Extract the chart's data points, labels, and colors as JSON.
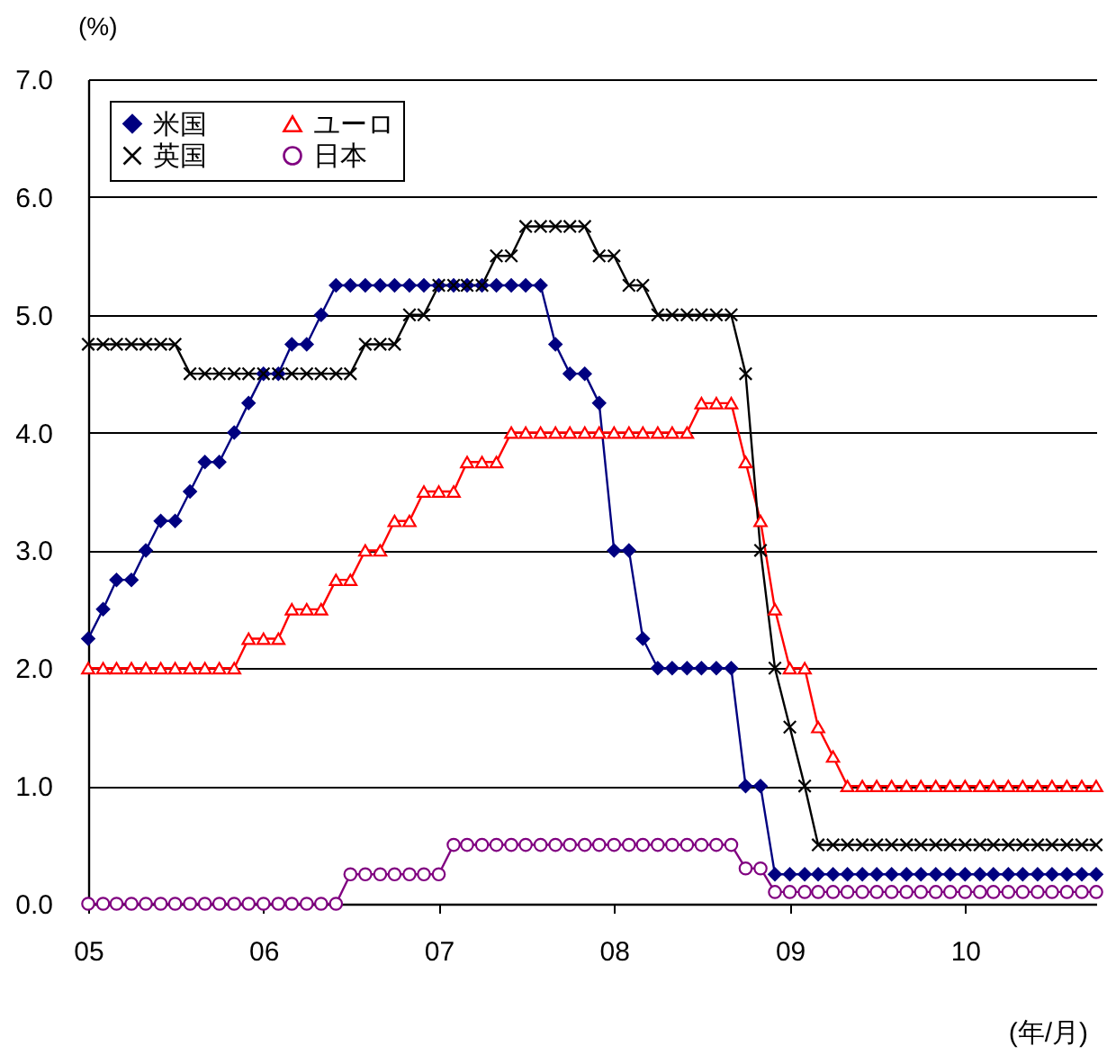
{
  "chart_data": {
    "type": "line",
    "ylabel": "(%)",
    "xlabel": "(年/月)",
    "grid": "y",
    "legend": "top left",
    "xlim": [
      "2005-01",
      "2010-10"
    ],
    "xticks": [
      {
        "value": "2005-01",
        "label": "05"
      },
      {
        "value": "2006-01",
        "label": "06"
      },
      {
        "value": "2007-01",
        "label": "07"
      },
      {
        "value": "2008-01",
        "label": "08"
      },
      {
        "value": "2009-01",
        "label": "09"
      },
      {
        "value": "2010-01",
        "label": "10"
      }
    ],
    "ylim": [
      0,
      7
    ],
    "yticks": [
      {
        "value": 0,
        "label": "0.0"
      },
      {
        "value": 1,
        "label": "1.0"
      },
      {
        "value": 2,
        "label": "2.0"
      },
      {
        "value": 3,
        "label": "3.0"
      },
      {
        "value": 4,
        "label": "4.0"
      },
      {
        "value": 5,
        "label": "5.0"
      },
      {
        "value": 6,
        "label": "6.0"
      },
      {
        "value": 7,
        "label": "7.0"
      }
    ],
    "x": [
      "2005-01",
      "2005-02",
      "2005-03",
      "2005-04",
      "2005-05",
      "2005-06",
      "2005-07",
      "2005-08",
      "2005-09",
      "2005-10",
      "2005-11",
      "2005-12",
      "2006-01",
      "2006-02",
      "2006-03",
      "2006-04",
      "2006-05",
      "2006-06",
      "2006-07",
      "2006-08",
      "2006-09",
      "2006-10",
      "2006-11",
      "2006-12",
      "2007-01",
      "2007-02",
      "2007-03",
      "2007-04",
      "2007-05",
      "2007-06",
      "2007-07",
      "2007-08",
      "2007-09",
      "2007-10",
      "2007-11",
      "2007-12",
      "2008-01",
      "2008-02",
      "2008-03",
      "2008-04",
      "2008-05",
      "2008-06",
      "2008-07",
      "2008-08",
      "2008-09",
      "2008-10",
      "2008-11",
      "2008-12",
      "2009-01",
      "2009-02",
      "2009-03",
      "2009-04",
      "2009-05",
      "2009-06",
      "2009-07",
      "2009-08",
      "2009-09",
      "2009-10",
      "2009-11",
      "2009-12",
      "2010-01",
      "2010-02",
      "2010-03",
      "2010-04",
      "2010-05",
      "2010-06",
      "2010-07",
      "2010-08",
      "2010-09",
      "2010-10"
    ],
    "series": [
      {
        "name": "米国",
        "color": "#000080",
        "marker": "diamond",
        "values": [
          2.25,
          2.5,
          2.75,
          2.75,
          3.0,
          3.25,
          3.25,
          3.5,
          3.75,
          3.75,
          4.0,
          4.25,
          4.5,
          4.5,
          4.75,
          4.75,
          5.0,
          5.25,
          5.25,
          5.25,
          5.25,
          5.25,
          5.25,
          5.25,
          5.25,
          5.25,
          5.25,
          5.25,
          5.25,
          5.25,
          5.25,
          5.25,
          4.75,
          4.5,
          4.5,
          4.25,
          3.0,
          3.0,
          2.25,
          2.0,
          2.0,
          2.0,
          2.0,
          2.0,
          2.0,
          1.0,
          1.0,
          0.25,
          0.25,
          0.25,
          0.25,
          0.25,
          0.25,
          0.25,
          0.25,
          0.25,
          0.25,
          0.25,
          0.25,
          0.25,
          0.25,
          0.25,
          0.25,
          0.25,
          0.25,
          0.25,
          0.25,
          0.25,
          0.25,
          0.25
        ]
      },
      {
        "name": "ユーロ",
        "color": "#ff0000",
        "marker": "triangle",
        "values": [
          2.0,
          2.0,
          2.0,
          2.0,
          2.0,
          2.0,
          2.0,
          2.0,
          2.0,
          2.0,
          2.0,
          2.25,
          2.25,
          2.25,
          2.5,
          2.5,
          2.5,
          2.75,
          2.75,
          3.0,
          3.0,
          3.25,
          3.25,
          3.5,
          3.5,
          3.5,
          3.75,
          3.75,
          3.75,
          4.0,
          4.0,
          4.0,
          4.0,
          4.0,
          4.0,
          4.0,
          4.0,
          4.0,
          4.0,
          4.0,
          4.0,
          4.0,
          4.25,
          4.25,
          4.25,
          3.75,
          3.25,
          2.5,
          2.0,
          2.0,
          1.5,
          1.25,
          1.0,
          1.0,
          1.0,
          1.0,
          1.0,
          1.0,
          1.0,
          1.0,
          1.0,
          1.0,
          1.0,
          1.0,
          1.0,
          1.0,
          1.0,
          1.0,
          1.0,
          1.0
        ]
      },
      {
        "name": "英国",
        "color": "#000000",
        "marker": "cross",
        "values": [
          4.75,
          4.75,
          4.75,
          4.75,
          4.75,
          4.75,
          4.75,
          4.5,
          4.5,
          4.5,
          4.5,
          4.5,
          4.5,
          4.5,
          4.5,
          4.5,
          4.5,
          4.5,
          4.5,
          4.75,
          4.75,
          4.75,
          5.0,
          5.0,
          5.25,
          5.25,
          5.25,
          5.25,
          5.5,
          5.5,
          5.75,
          5.75,
          5.75,
          5.75,
          5.75,
          5.5,
          5.5,
          5.25,
          5.25,
          5.0,
          5.0,
          5.0,
          5.0,
          5.0,
          5.0,
          4.5,
          3.0,
          2.0,
          1.5,
          1.0,
          0.5,
          0.5,
          0.5,
          0.5,
          0.5,
          0.5,
          0.5,
          0.5,
          0.5,
          0.5,
          0.5,
          0.5,
          0.5,
          0.5,
          0.5,
          0.5,
          0.5,
          0.5,
          0.5,
          0.5
        ]
      },
      {
        "name": "日本",
        "color": "#800080",
        "marker": "circle",
        "values": [
          0,
          0,
          0,
          0,
          0,
          0,
          0,
          0,
          0,
          0,
          0,
          0,
          0,
          0,
          0,
          0,
          0,
          0,
          0.25,
          0.25,
          0.25,
          0.25,
          0.25,
          0.25,
          0.25,
          0.5,
          0.5,
          0.5,
          0.5,
          0.5,
          0.5,
          0.5,
          0.5,
          0.5,
          0.5,
          0.5,
          0.5,
          0.5,
          0.5,
          0.5,
          0.5,
          0.5,
          0.5,
          0.5,
          0.5,
          0.3,
          0.3,
          0.1,
          0.1,
          0.1,
          0.1,
          0.1,
          0.1,
          0.1,
          0.1,
          0.1,
          0.1,
          0.1,
          0.1,
          0.1,
          0.1,
          0.1,
          0.1,
          0.1,
          0.1,
          0.1,
          0.1,
          0.1,
          0.1,
          0.1
        ]
      }
    ]
  }
}
